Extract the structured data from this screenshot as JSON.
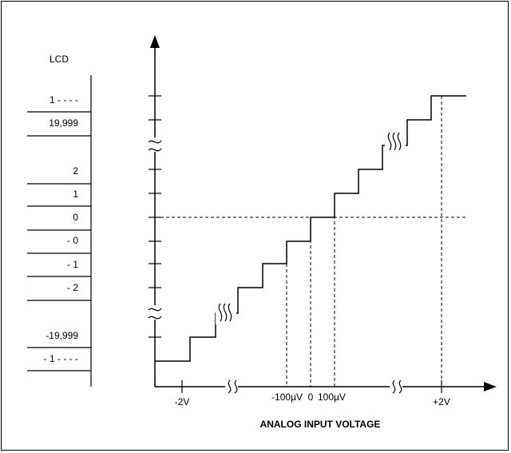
{
  "figure": {
    "lcd_header": "LCD",
    "lcd_readings": [
      "1 - - - -",
      "19,999",
      "2",
      "1",
      "0",
      "- 0",
      "- 1",
      "- 2",
      "-19,999",
      "- 1 - - - -"
    ],
    "x_ticks": {
      "neg_2v": "-2V",
      "neg_100uv": "-100µV",
      "zero": "0",
      "pos_100uv": "100µV",
      "pos_2v": "+2V"
    },
    "x_axis_title": "ANALOG INPUT VOLTAGE"
  }
}
